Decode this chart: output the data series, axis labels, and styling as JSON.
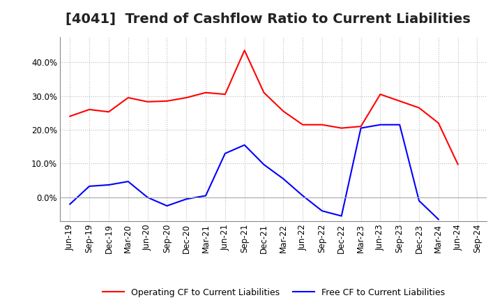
{
  "title": "[4041]  Trend of Cashflow Ratio to Current Liabilities",
  "x_labels": [
    "Jun-19",
    "Sep-19",
    "Dec-19",
    "Mar-20",
    "Jun-20",
    "Sep-20",
    "Dec-20",
    "Mar-21",
    "Jun-21",
    "Sep-21",
    "Dec-21",
    "Mar-22",
    "Jun-22",
    "Sep-22",
    "Dec-22",
    "Mar-23",
    "Jun-23",
    "Sep-23",
    "Dec-23",
    "Mar-24",
    "Jun-24",
    "Sep-24"
  ],
  "operating_cf": [
    0.24,
    0.26,
    0.253,
    0.295,
    0.283,
    0.285,
    0.295,
    0.31,
    0.305,
    0.435,
    0.31,
    0.255,
    0.215,
    0.215,
    0.205,
    0.21,
    0.305,
    0.285,
    0.265,
    0.22,
    0.098,
    null
  ],
  "free_cf": [
    -0.02,
    0.033,
    0.037,
    0.047,
    0.0,
    -0.025,
    -0.005,
    0.005,
    0.13,
    0.155,
    0.097,
    0.055,
    0.005,
    -0.04,
    -0.055,
    0.205,
    0.215,
    0.215,
    -0.01,
    -0.065,
    null,
    null
  ],
  "operating_color": "#FF0000",
  "free_color": "#0000FF",
  "background_color": "#FFFFFF",
  "plot_bg_color": "#FFFFFF",
  "grid_color": "#AAAAAA",
  "ylim": [
    -0.07,
    0.475
  ],
  "yticks": [
    0.0,
    0.1,
    0.2,
    0.3,
    0.4
  ],
  "legend_op": "Operating CF to Current Liabilities",
  "legend_free": "Free CF to Current Liabilities",
  "title_fontsize": 14,
  "tick_fontsize": 8.5
}
